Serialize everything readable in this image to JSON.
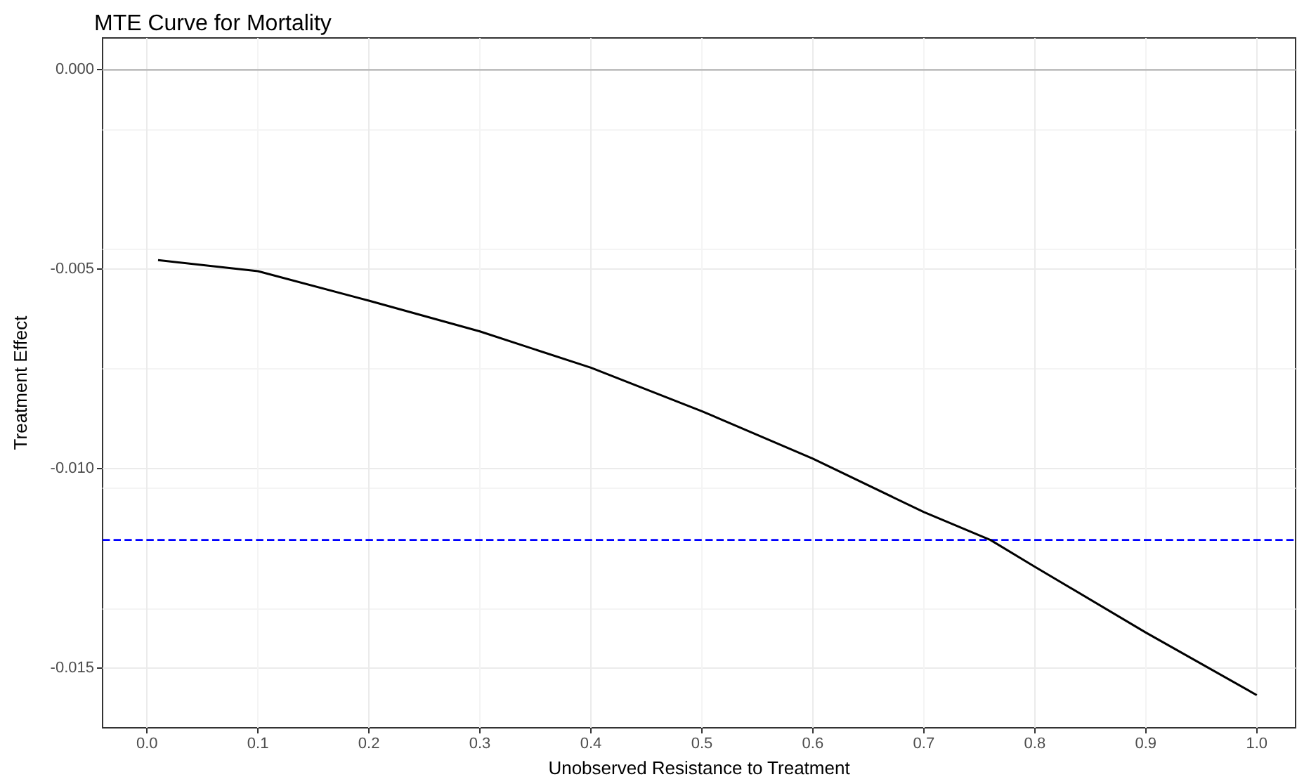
{
  "chart_data": {
    "type": "line",
    "title": "MTE Curve for Mortality",
    "xlabel": "Unobserved Resistance to Treatment",
    "ylabel": "Treatment Effect",
    "x": [
      0.01,
      0.1,
      0.2,
      0.3,
      0.4,
      0.5,
      0.6,
      0.7,
      0.76,
      0.8,
      0.9,
      1.0
    ],
    "series": [
      {
        "color": "#000000",
        "values": [
          -0.00477,
          -0.00505,
          -0.00579,
          -0.00656,
          -0.00747,
          -0.00856,
          -0.00975,
          -0.01109,
          -0.01179,
          -0.01246,
          -0.01411,
          -0.01568
        ]
      }
    ],
    "xlim": [
      -0.04,
      1.035
    ],
    "xticks": [
      {
        "value": 0,
        "label": "0.0"
      },
      {
        "value": 0.1,
        "label": "0.1"
      },
      {
        "value": 0.2,
        "label": "0.2"
      },
      {
        "value": 0.3,
        "label": "0.3"
      },
      {
        "value": 0.4,
        "label": "0.4"
      },
      {
        "value": 0.5,
        "label": "0.5"
      },
      {
        "value": 0.6,
        "label": "0.6"
      },
      {
        "value": 0.7,
        "label": "0.7"
      },
      {
        "value": 0.8,
        "label": "0.8"
      },
      {
        "value": 0.9,
        "label": "0.9"
      },
      {
        "value": 1.0,
        "label": "1.0"
      }
    ],
    "ylim": [
      -0.0165,
      0.0008
    ],
    "yticks": [
      {
        "value": -0.015,
        "label": "-0.015"
      },
      {
        "value": -0.01,
        "label": "-0.010"
      },
      {
        "value": -0.005,
        "label": "-0.005"
      },
      {
        "value": 0,
        "label": "0.000"
      }
    ],
    "ref_lines": [
      {
        "axis": "y",
        "value": 0,
        "color": "#bebebe",
        "line_style": "solid"
      },
      {
        "axis": "y",
        "value": -0.01179,
        "color": "#0000ff",
        "line_style": "dashed"
      }
    ],
    "grid": true,
    "marker": "none",
    "line_style": "solid"
  }
}
